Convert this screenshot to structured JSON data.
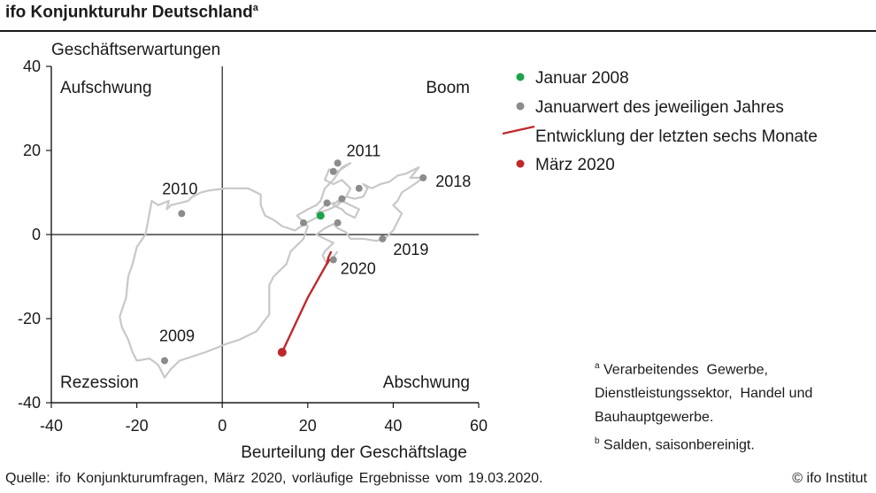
{
  "title": "ifo Konjunkturuhr Deutschland",
  "title_footnote_mark": "a",
  "legend": [
    {
      "label": "Januar 2008",
      "kind": "dot",
      "color": "#1aa34a"
    },
    {
      "label": "Januarwert des jeweiligen Jahres",
      "kind": "dot",
      "color": "#8c8c8c"
    },
    {
      "label": "Entwicklung der letzten sechs Monate",
      "kind": "line",
      "color": "#c0282d"
    },
    {
      "label": "März 2020",
      "kind": "dot",
      "color": "#c0282d"
    }
  ],
  "footnotes": [
    {
      "mark": "a",
      "lines": [
        "Verarbeitendes  Gewerbe,",
        "Dienstleistungssektor,  Handel und",
        "Bauhauptgewerbe."
      ]
    },
    {
      "mark": "b",
      "lines": [
        "Salden, saisonbereinigt."
      ]
    }
  ],
  "source": "Quelle:  ifo Konjunkturumfragen,  März 2020,  vorläufige Ergebnisse  vom 19.03.2020.",
  "copyright": "© ifo Institut",
  "chart_data": {
    "type": "scatter",
    "xlabel": "Beurteilung der Geschäftslage",
    "ylabel": "Geschäftserwartungen",
    "xlim": [
      -40,
      60
    ],
    "ylim": [
      -40,
      40
    ],
    "x_ticks": [
      -40,
      -20,
      0,
      20,
      40,
      60
    ],
    "y_ticks": [
      -40,
      -20,
      0,
      20,
      40
    ],
    "quadrants": {
      "top_left": "Aufschwung",
      "top_right": "Boom",
      "bottom_left": "Rezession",
      "bottom_right": "Abschwung"
    },
    "path_color": "#c8c8c8",
    "path": [
      [
        23,
        4.5
      ],
      [
        20,
        3
      ],
      [
        17,
        1
      ],
      [
        14,
        2
      ],
      [
        12,
        3.5
      ],
      [
        10,
        4.5
      ],
      [
        9,
        7
      ],
      [
        9,
        9.5
      ],
      [
        6,
        11
      ],
      [
        1,
        11
      ],
      [
        -3,
        10.5
      ],
      [
        -5,
        10
      ],
      [
        -7,
        9
      ],
      [
        -8,
        8
      ],
      [
        -10,
        7.5
      ],
      [
        -12,
        7
      ],
      [
        -13,
        6
      ],
      [
        -12.5,
        8
      ],
      [
        -15,
        7
      ],
      [
        -16.5,
        8
      ],
      [
        -17.5,
        2.5
      ],
      [
        -18,
        0
      ],
      [
        -20,
        -3
      ],
      [
        -21,
        -7
      ],
      [
        -22,
        -10
      ],
      [
        -22.5,
        -15
      ],
      [
        -24,
        -19.5
      ],
      [
        -23.5,
        -22
      ],
      [
        -22,
        -25
      ],
      [
        -21,
        -28
      ],
      [
        -20,
        -30
      ],
      [
        -17,
        -29.5
      ],
      [
        -15,
        -31
      ],
      [
        -13.5,
        -34
      ],
      [
        -12,
        -32
      ],
      [
        -10,
        -30
      ],
      [
        -7,
        -29
      ],
      [
        -4,
        -28
      ],
      [
        1,
        -26
      ],
      [
        4,
        -25
      ],
      [
        8,
        -23
      ],
      [
        11,
        -19
      ],
      [
        11,
        -12
      ],
      [
        12,
        -10
      ],
      [
        15,
        -7
      ],
      [
        16,
        -4
      ],
      [
        17,
        -3
      ],
      [
        19,
        -1
      ],
      [
        20,
        2
      ],
      [
        19,
        3
      ],
      [
        18,
        4
      ],
      [
        17.5,
        4.5
      ],
      [
        20,
        6
      ],
      [
        22,
        7
      ],
      [
        23,
        8
      ],
      [
        24,
        11
      ],
      [
        26,
        13
      ],
      [
        28,
        16
      ],
      [
        30,
        17
      ],
      [
        27,
        15
      ],
      [
        25,
        15.5
      ],
      [
        24,
        13
      ],
      [
        26,
        12
      ],
      [
        28,
        13
      ],
      [
        30,
        11
      ],
      [
        29,
        9
      ],
      [
        27,
        8
      ],
      [
        26,
        7
      ],
      [
        28,
        6
      ],
      [
        29,
        5
      ],
      [
        31,
        4
      ],
      [
        32,
        6
      ],
      [
        30,
        7
      ],
      [
        28,
        8
      ],
      [
        24,
        7
      ],
      [
        23,
        6
      ],
      [
        22,
        5
      ],
      [
        25,
        6
      ],
      [
        27,
        7
      ],
      [
        29,
        9
      ],
      [
        31,
        8.5
      ],
      [
        33,
        9
      ],
      [
        34,
        11
      ],
      [
        33,
        12
      ],
      [
        35,
        11
      ],
      [
        37,
        12
      ],
      [
        39,
        12.5
      ],
      [
        41,
        14
      ],
      [
        43,
        14.5
      ],
      [
        46,
        16
      ],
      [
        44,
        13.5
      ],
      [
        47,
        13.5
      ],
      [
        45,
        12
      ],
      [
        42,
        10
      ],
      [
        41,
        8
      ],
      [
        40,
        7
      ],
      [
        42,
        5
      ],
      [
        41,
        3
      ],
      [
        40,
        1
      ],
      [
        38,
        -1
      ],
      [
        36,
        -1.5
      ],
      [
        33,
        -1
      ],
      [
        30,
        -1
      ],
      [
        29,
        0.5
      ],
      [
        27,
        1.5
      ],
      [
        26,
        2.5
      ],
      [
        24,
        1.5
      ],
      [
        22,
        0
      ],
      [
        24,
        -1
      ],
      [
        26,
        -2
      ],
      [
        25,
        -3
      ],
      [
        24,
        -4
      ],
      [
        23.5,
        -5
      ],
      [
        24.5,
        -7
      ],
      [
        25.5,
        -6
      ],
      [
        27,
        -4
      ]
    ],
    "january_points": [
      {
        "x": -9.5,
        "y": 5,
        "label": "2010"
      },
      {
        "x": -13.5,
        "y": -30,
        "label": "2009"
      },
      {
        "x": 27,
        "y": 17,
        "label": "2011"
      },
      {
        "x": 47,
        "y": 13.5,
        "label": "2018"
      },
      {
        "x": 37.5,
        "y": -1,
        "label": "2019"
      },
      {
        "x": 26,
        "y": -6,
        "label": "2020"
      },
      {
        "x": 26,
        "y": 15,
        "label": ""
      },
      {
        "x": 32,
        "y": 11,
        "label": ""
      },
      {
        "x": 28,
        "y": 8.5,
        "label": ""
      },
      {
        "x": 24.5,
        "y": 7.5,
        "label": ""
      },
      {
        "x": 19,
        "y": 2.8,
        "label": ""
      },
      {
        "x": 27,
        "y": 2.8,
        "label": ""
      }
    ],
    "january_2008": {
      "x": 23,
      "y": 4.5
    },
    "last_six_months": [
      [
        25.5,
        -4
      ],
      [
        24.8,
        -5.5
      ],
      [
        24.5,
        -7
      ],
      [
        25,
        -6
      ],
      [
        20,
        -15
      ],
      [
        14,
        -28
      ]
    ],
    "march_2020": {
      "x": 14,
      "y": -28
    }
  }
}
